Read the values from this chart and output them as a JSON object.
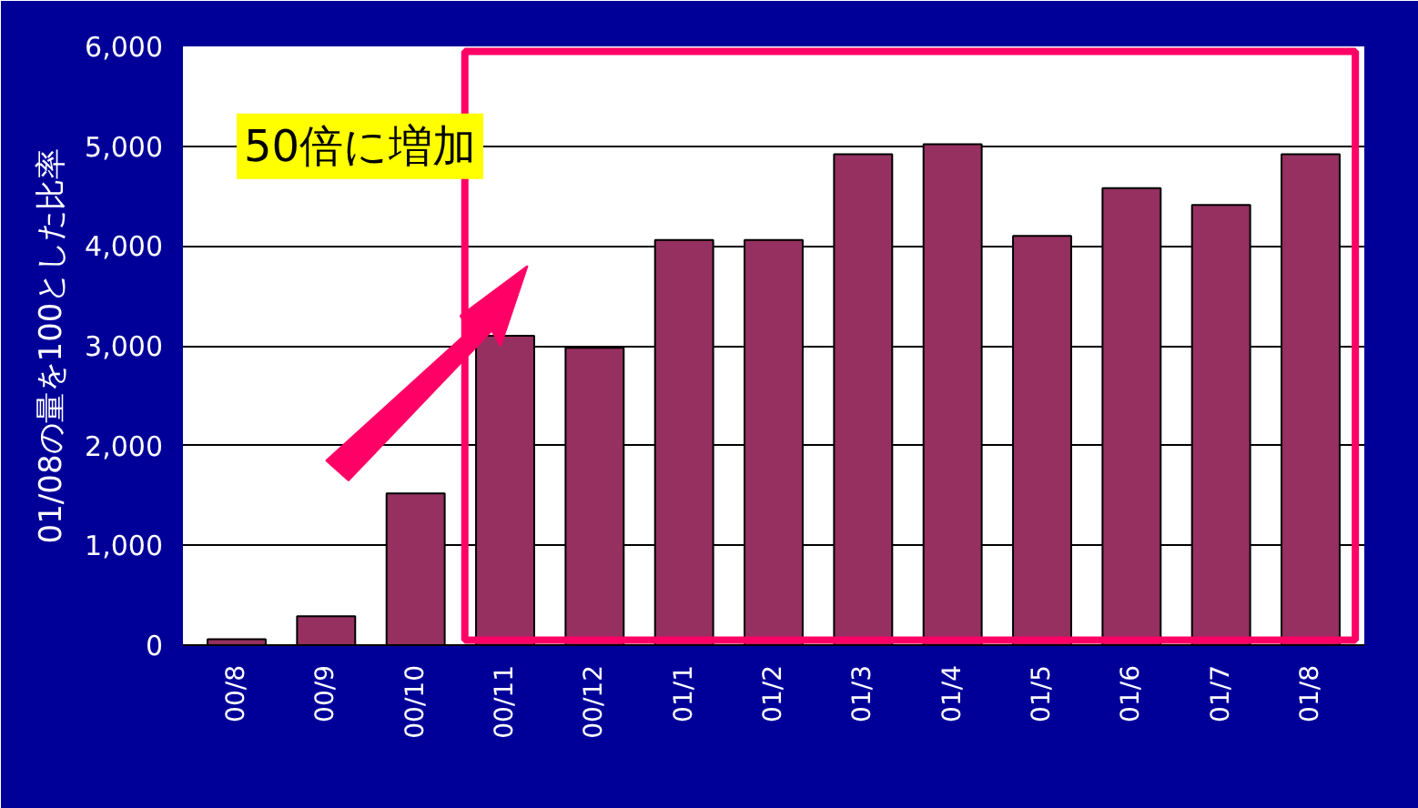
{
  "chart_data": {
    "type": "bar",
    "ylabel": "01/08の量を100とした比率",
    "annotations": [
      "50倍に増加"
    ],
    "categories": [
      "00/8",
      "00/9",
      "00/10",
      "00/11",
      "00/12",
      "01/1",
      "01/2",
      "01/3",
      "01/4",
      "01/5",
      "01/6",
      "01/7",
      "01/8"
    ],
    "values": [
      60,
      290,
      1520,
      3100,
      2980,
      4060,
      4060,
      4920,
      5020,
      4100,
      4580,
      4410,
      4920
    ],
    "color": "#953060",
    "ylim": [
      0,
      6000
    ],
    "yticks": [
      0,
      {
        "value": 1000,
        "label": "1,000"
      },
      {
        "value": 2000,
        "label": "2,000"
      },
      {
        "value": 3000,
        "label": "3,000"
      },
      {
        "value": 4000,
        "label": "4,000"
      },
      {
        "value": 5000,
        "label": "5,000"
      },
      {
        "value": 6000,
        "label": "6,000"
      }
    ],
    "grid": "y"
  }
}
